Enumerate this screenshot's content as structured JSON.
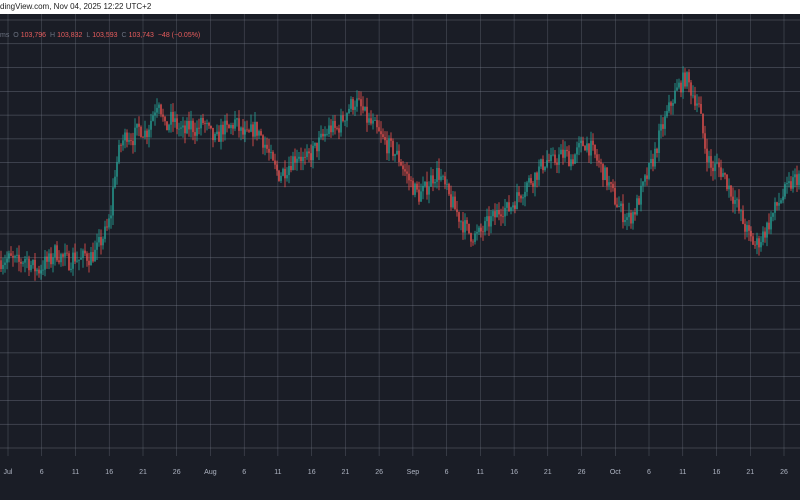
{
  "header": {
    "source_text": "dingView.com, Nov 04, 2025 12:22 UTC+2"
  },
  "ohlc_bar": {
    "symbol_fragment": "ms",
    "open_label": "O",
    "open": "103,796",
    "high_label": "H",
    "high": "103,832",
    "low_label": "L",
    "low": "103,593",
    "close_label": "C",
    "close": "103,743",
    "change": "−48 (−0.05%)"
  },
  "colors": {
    "background": "#1a1d26",
    "grid": "#7a7f8c",
    "up": "#26a69a",
    "down": "#ef5350",
    "text": "#aeb4c2",
    "header_text": "#202020",
    "change_text": "#e85d5d"
  },
  "chart_data": {
    "type": "line",
    "subtype": "candlestick",
    "x_tick_labels": [
      "Jul",
      "6",
      "11",
      "16",
      "21",
      "26",
      "Aug",
      "6",
      "11",
      "16",
      "21",
      "26",
      "Sep",
      "6",
      "11",
      "16",
      "21",
      "26",
      "Oct",
      "6",
      "11",
      "16",
      "21",
      "26"
    ],
    "grid": true,
    "series": [
      {
        "values": [
          [
            0.0,
            0.72
          ],
          [
            1.5,
            0.73
          ],
          [
            3.0,
            0.7
          ],
          [
            4.0,
            0.74
          ],
          [
            5.0,
            0.68
          ],
          [
            6.0,
            0.65
          ],
          [
            7.0,
            0.7
          ],
          [
            8.0,
            0.72
          ],
          [
            8.5,
            0.78
          ],
          [
            9.0,
            0.77
          ],
          [
            10.0,
            0.73
          ],
          [
            11.0,
            0.71
          ],
          [
            11.6,
            0.75
          ],
          [
            12.2,
            0.73
          ],
          [
            12.8,
            0.72
          ],
          [
            13.4,
            0.76
          ],
          [
            14.0,
            0.74
          ],
          [
            15.0,
            0.77
          ],
          [
            16.0,
            0.86
          ],
          [
            17.0,
            0.94
          ],
          [
            17.5,
            1.05
          ],
          [
            18.0,
            1.3
          ],
          [
            19.0,
            1.5
          ],
          [
            20.0,
            1.58
          ],
          [
            21.0,
            1.55
          ],
          [
            22.0,
            1.62
          ],
          [
            23.0,
            1.58
          ],
          [
            24.0,
            1.7
          ],
          [
            25.0,
            1.83
          ],
          [
            26.0,
            1.6
          ],
          [
            27.0,
            1.68
          ],
          [
            28.0,
            1.62
          ],
          [
            29.0,
            1.58
          ],
          [
            30.0,
            1.64
          ],
          [
            31.0,
            1.6
          ],
          [
            32.0,
            1.66
          ],
          [
            33.0,
            1.58
          ],
          [
            34.0,
            1.52
          ],
          [
            35.0,
            1.62
          ],
          [
            36.0,
            1.6
          ],
          [
            37.0,
            1.66
          ],
          [
            38.0,
            1.58
          ],
          [
            39.0,
            1.55
          ],
          [
            40.0,
            1.62
          ],
          [
            41.0,
            1.58
          ],
          [
            42.0,
            1.48
          ],
          [
            43.0,
            1.36
          ],
          [
            44.0,
            1.3
          ],
          [
            45.0,
            1.34
          ],
          [
            46.0,
            1.4
          ],
          [
            47.0,
            1.45
          ],
          [
            48.0,
            1.38
          ],
          [
            49.0,
            1.44
          ],
          [
            50.0,
            1.5
          ],
          [
            51.0,
            1.56
          ],
          [
            52.0,
            1.62
          ],
          [
            53.0,
            1.6
          ],
          [
            54.0,
            1.68
          ],
          [
            55.0,
            1.76
          ],
          [
            56.0,
            1.8
          ],
          [
            57.0,
            1.74
          ],
          [
            58.0,
            1.66
          ],
          [
            59.0,
            1.62
          ],
          [
            60.0,
            1.55
          ],
          [
            61.0,
            1.5
          ],
          [
            62.0,
            1.46
          ],
          [
            63.0,
            1.4
          ],
          [
            64.0,
            1.3
          ],
          [
            65.0,
            1.22
          ],
          [
            66.0,
            1.16
          ],
          [
            67.0,
            1.2
          ],
          [
            68.0,
            1.28
          ],
          [
            69.0,
            1.32
          ],
          [
            70.0,
            1.22
          ],
          [
            71.0,
            1.12
          ],
          [
            72.0,
            1.04
          ],
          [
            73.0,
            0.96
          ],
          [
            74.0,
            0.9
          ],
          [
            75.0,
            0.88
          ],
          [
            76.0,
            0.92
          ],
          [
            77.0,
            0.98
          ],
          [
            78.0,
            1.02
          ],
          [
            79.0,
            1.08
          ],
          [
            80.0,
            1.06
          ],
          [
            81.0,
            1.12
          ],
          [
            82.0,
            1.18
          ],
          [
            83.0,
            1.24
          ],
          [
            84.0,
            1.28
          ],
          [
            85.0,
            1.34
          ],
          [
            86.0,
            1.4
          ],
          [
            87.0,
            1.38
          ],
          [
            88.0,
            1.42
          ],
          [
            89.0,
            1.44
          ],
          [
            90.0,
            1.4
          ],
          [
            91.0,
            1.46
          ],
          [
            92.0,
            1.52
          ],
          [
            93.0,
            1.48
          ],
          [
            94.0,
            1.4
          ],
          [
            95.0,
            1.32
          ],
          [
            96.0,
            1.22
          ],
          [
            97.0,
            1.12
          ],
          [
            98.0,
            1.04
          ],
          [
            99.0,
            1.0
          ],
          [
            100.0,
            1.06
          ],
          [
            101.0,
            1.18
          ],
          [
            102.0,
            1.3
          ],
          [
            103.0,
            1.42
          ],
          [
            104.0,
            1.58
          ],
          [
            105.0,
            1.7
          ],
          [
            106.0,
            1.82
          ],
          [
            107.0,
            1.9
          ],
          [
            108.0,
            1.96
          ],
          [
            109.0,
            1.86
          ],
          [
            110.0,
            1.78
          ],
          [
            111.0,
            1.5
          ],
          [
            112.0,
            1.34
          ],
          [
            113.0,
            1.36
          ],
          [
            114.0,
            1.3
          ],
          [
            115.0,
            1.2
          ],
          [
            116.0,
            1.1
          ],
          [
            117.0,
            0.98
          ],
          [
            118.0,
            0.88
          ],
          [
            119.0,
            0.82
          ],
          [
            120.0,
            0.88
          ],
          [
            121.0,
            0.96
          ],
          [
            122.0,
            1.06
          ],
          [
            123.0,
            1.14
          ],
          [
            124.0,
            1.2
          ],
          [
            125.0,
            1.26
          ],
          [
            126.0,
            1.3
          ]
        ]
      }
    ]
  }
}
